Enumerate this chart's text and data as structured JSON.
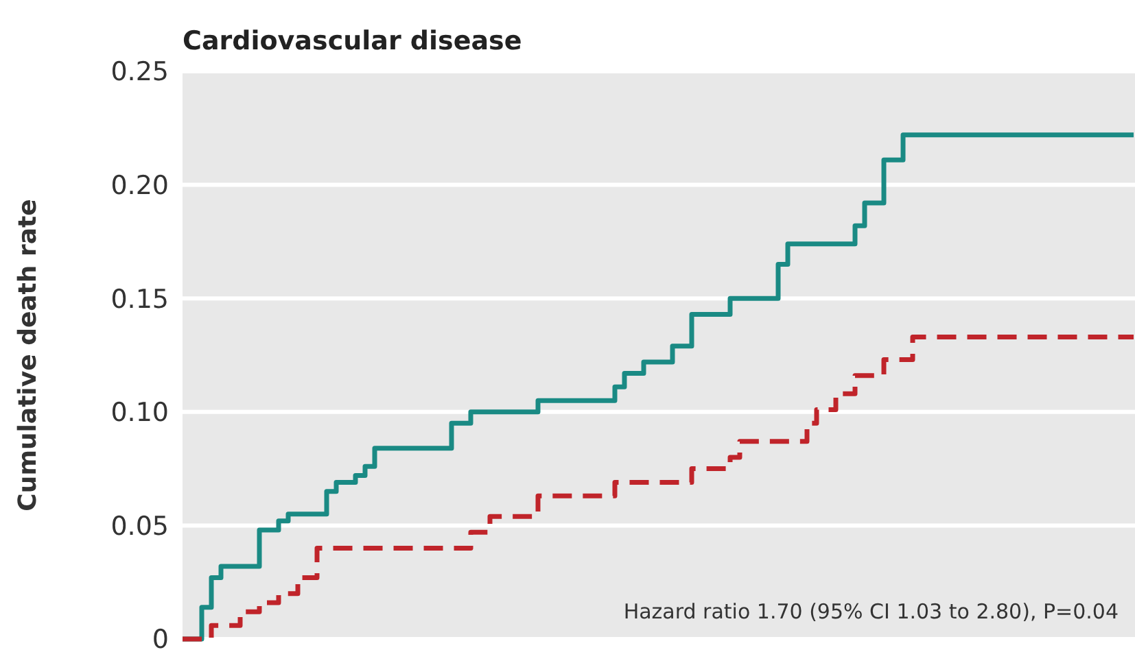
{
  "chart_data": {
    "type": "step",
    "title": "Cardiovascular disease",
    "ylabel": "Cumulative death rate",
    "categories": [
      null,
      null,
      null,
      null,
      null,
      null,
      null,
      null,
      null,
      null,
      null,
      null,
      null,
      null,
      null,
      null,
      null,
      null,
      null,
      null,
      null,
      null,
      null,
      null,
      null,
      null,
      null,
      null,
      null,
      null,
      null,
      null,
      null,
      null,
      null,
      null,
      null,
      null,
      null,
      null,
      null,
      null,
      null,
      null,
      null,
      null,
      null,
      null,
      null,
      null,
      null,
      null,
      null,
      null,
      null,
      null,
      null,
      null,
      null,
      null,
      null,
      null,
      null,
      null,
      null,
      null,
      null,
      null,
      null,
      null,
      null,
      null,
      null,
      null,
      null,
      null,
      null,
      null,
      null,
      null,
      null,
      null,
      null,
      null,
      null,
      null,
      null,
      null,
      null,
      null,
      null,
      null,
      null,
      null,
      null,
      null,
      null,
      null,
      null,
      null
    ],
    "series": [
      {
        "color": "#1a8a84",
        "line_style": "solid",
        "values": [
          0,
          0,
          0.014,
          0.027,
          0.032,
          0.032,
          0.032,
          0.032,
          0.048,
          0.048,
          0.052,
          0.055,
          0.055,
          0.055,
          0.055,
          0.065,
          0.069,
          0.069,
          0.072,
          0.076,
          0.084,
          0.084,
          0.084,
          0.084,
          0.084,
          0.084,
          0.084,
          0.084,
          0.095,
          0.095,
          0.1,
          0.1,
          0.1,
          0.1,
          0.1,
          0.1,
          0.1,
          0.105,
          0.105,
          0.105,
          0.105,
          0.105,
          0.105,
          0.105,
          0.105,
          0.111,
          0.117,
          0.117,
          0.122,
          0.122,
          0.122,
          0.129,
          0.129,
          0.143,
          0.143,
          0.143,
          0.143,
          0.15,
          0.15,
          0.15,
          0.15,
          0.15,
          0.165,
          0.174,
          0.174,
          0.174,
          0.174,
          0.174,
          0.174,
          0.174,
          0.182,
          0.192,
          0.192,
          0.211,
          0.211,
          0.222,
          0.222,
          0.222,
          0.222,
          0.222,
          0.222,
          0.222,
          0.222,
          0.222,
          0.222,
          0.222,
          0.222,
          0.222,
          0.222,
          0.222,
          0.222,
          0.222,
          0.222,
          0.222,
          0.222,
          0.222,
          0.222,
          0.222,
          0.222,
          0.222
        ]
      },
      {
        "color": "#c0242a",
        "line_style": "dashed",
        "values": [
          0,
          0,
          0,
          0.006,
          0.006,
          0.006,
          0.012,
          0.012,
          0.016,
          0.016,
          0.02,
          0.02,
          0.027,
          0.027,
          0.04,
          0.04,
          0.04,
          0.04,
          0.04,
          0.04,
          0.04,
          0.04,
          0.04,
          0.04,
          0.04,
          0.04,
          0.04,
          0.04,
          0.04,
          0.04,
          0.047,
          0.047,
          0.054,
          0.054,
          0.054,
          0.054,
          0.054,
          0.063,
          0.063,
          0.063,
          0.063,
          0.063,
          0.063,
          0.063,
          0.063,
          0.069,
          0.069,
          0.069,
          0.069,
          0.069,
          0.069,
          0.069,
          0.069,
          0.075,
          0.075,
          0.075,
          0.075,
          0.08,
          0.087,
          0.087,
          0.087,
          0.087,
          0.087,
          0.087,
          0.087,
          0.095,
          0.101,
          0.101,
          0.108,
          0.108,
          0.116,
          0.116,
          0.116,
          0.123,
          0.123,
          0.123,
          0.133,
          0.133,
          0.133,
          0.133,
          0.133,
          0.133,
          0.133,
          0.133,
          0.133,
          0.133,
          0.133,
          0.133,
          0.133,
          0.133,
          0.133,
          0.133,
          0.133,
          0.133,
          0.133,
          0.133,
          0.133,
          0.133,
          0.133,
          0.133
        ]
      }
    ],
    "ylim": [
      0,
      0.25
    ],
    "yticks": [
      {
        "value": 0,
        "label": "0"
      },
      {
        "value": 0.05,
        "label": "0.05"
      },
      {
        "value": 0.1,
        "label": "0.10"
      },
      {
        "value": 0.15,
        "label": "0.15"
      },
      {
        "value": 0.2,
        "label": "0.20"
      },
      {
        "value": 0.25,
        "label": "0.25"
      }
    ],
    "grid": "y",
    "tick_labels": "y",
    "annotations": [
      "Hazard ratio 1.70 (95% CI 1.03 to 2.80), P=0.04"
    ]
  }
}
